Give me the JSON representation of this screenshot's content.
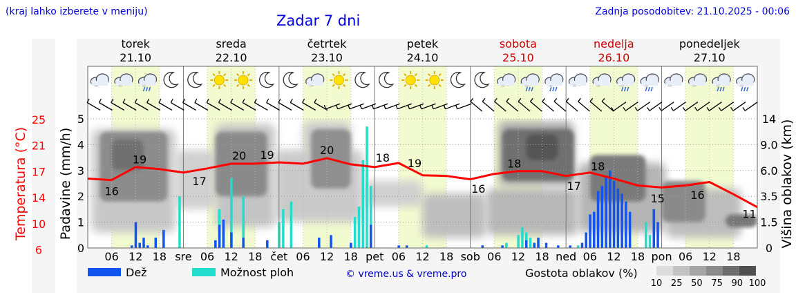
{
  "header": {
    "hint": "(kraj lahko izberete v meniju)",
    "title": "Zadar 7 dni",
    "updated": "Zadnja posodobitev: 21.10.2025 - 00:06"
  },
  "days": [
    {
      "name": "torek",
      "date": "21.10",
      "weekend": false,
      "abbr": ""
    },
    {
      "name": "sreda",
      "date": "22.10",
      "weekend": false,
      "abbr": "sre"
    },
    {
      "name": "četrtek",
      "date": "23.10",
      "weekend": false,
      "abbr": "čet"
    },
    {
      "name": "petek",
      "date": "24.10",
      "weekend": false,
      "abbr": "pet"
    },
    {
      "name": "sobota",
      "date": "25.10",
      "weekend": true,
      "abbr": "sob"
    },
    {
      "name": "nedelja",
      "date": "26.10",
      "weekend": true,
      "abbr": "ned"
    },
    {
      "name": "ponedeljek",
      "date": "27.10",
      "weekend": false,
      "abbr": "pon"
    }
  ],
  "hour_labels": [
    "06",
    "12",
    "18"
  ],
  "axes": {
    "left_temp_label": "Temperatura (°C)",
    "left_temp_ticks": [
      "25",
      "21",
      "17",
      "14",
      "10",
      "6"
    ],
    "left_precip_label": "Padavine (mm/h)",
    "left_precip_ticks": [
      "5",
      "4",
      "3",
      "2",
      "1",
      "0"
    ],
    "right_label": "Višina oblakov (km)",
    "right_ticks": [
      "14",
      "9.0",
      "6.0",
      "3.5",
      "1.5",
      "0"
    ]
  },
  "legend": {
    "rain": "Dež",
    "showers": "Možnost ploh",
    "credit": "© vreme.us & vreme.pro",
    "cloud_density": "Gostota oblakov (%)",
    "density_ticks": [
      "10",
      "25",
      "50",
      "75",
      "90",
      "100"
    ]
  },
  "colors": {
    "temp_line": "#ff0000",
    "rain": "#1155ee",
    "showers": "#22ddcc",
    "title": "#0000dd",
    "weekend": "#cc0000",
    "day_band": "#f2fad0"
  },
  "chart_data": {
    "type": "line",
    "x_unit": "hours since 21.10 00:00",
    "temperature": {
      "x": [
        0,
        6,
        12,
        18,
        24,
        30,
        36,
        42,
        48,
        54,
        60,
        66,
        72,
        78,
        84,
        90,
        96,
        102,
        108,
        114,
        120,
        126,
        132,
        138,
        144,
        150,
        156,
        162,
        168
      ],
      "y": [
        16.2,
        16.0,
        17.9,
        17.6,
        17.1,
        17.7,
        18.4,
        18.4,
        18.6,
        18.4,
        19.2,
        18.3,
        17.9,
        18.5,
        16.7,
        16.6,
        16.1,
        16.9,
        17.3,
        17.3,
        16.6,
        17.1,
        16.2,
        15.2,
        14.9,
        15.2,
        15.7,
        13.9,
        12.0
      ],
      "labels": [
        {
          "x": 6,
          "v": "16"
        },
        {
          "x": 13,
          "v": "19"
        },
        {
          "x": 28,
          "v": "17"
        },
        {
          "x": 38,
          "v": "20"
        },
        {
          "x": 45,
          "v": "19"
        },
        {
          "x": 60,
          "v": "20"
        },
        {
          "x": 74,
          "v": "18"
        },
        {
          "x": 82,
          "v": "19"
        },
        {
          "x": 98,
          "v": "16"
        },
        {
          "x": 107,
          "v": "18"
        },
        {
          "x": 122,
          "v": "17"
        },
        {
          "x": 128,
          "v": "18"
        },
        {
          "x": 143,
          "v": "15"
        },
        {
          "x": 153,
          "v": "16"
        },
        {
          "x": 166,
          "v": "11"
        }
      ],
      "ylim": [
        6,
        25
      ]
    },
    "precipitation": {
      "ylim": [
        0,
        5
      ],
      "rain": [
        [
          11,
          0.1
        ],
        [
          12,
          1.0
        ],
        [
          13,
          0.2
        ],
        [
          14,
          0.4
        ],
        [
          15,
          0.1
        ],
        [
          17,
          0.4
        ],
        [
          19,
          0.7
        ],
        [
          32,
          0.3
        ],
        [
          33,
          0.9
        ],
        [
          34,
          1.1
        ],
        [
          36,
          0.6
        ],
        [
          39,
          0.4
        ],
        [
          45,
          0.3
        ],
        [
          58,
          0.4
        ],
        [
          61,
          0.5
        ],
        [
          66,
          0.2
        ],
        [
          71,
          0.9
        ],
        [
          78,
          0.1
        ],
        [
          80,
          0.1
        ],
        [
          99,
          0.1
        ],
        [
          104,
          0.1
        ],
        [
          110,
          0.3
        ],
        [
          112,
          0.2
        ],
        [
          113,
          0.4
        ],
        [
          115,
          0.2
        ],
        [
          118,
          0.1
        ],
        [
          121,
          0.1
        ],
        [
          124,
          0.2
        ],
        [
          125,
          0.6
        ],
        [
          126,
          1.3
        ],
        [
          127,
          1.4
        ],
        [
          128,
          2.2
        ],
        [
          129,
          2.4
        ],
        [
          130,
          2.8
        ],
        [
          131,
          3.0
        ],
        [
          132,
          2.6
        ],
        [
          133,
          2.3
        ],
        [
          134,
          2.1
        ],
        [
          135,
          1.8
        ],
        [
          136,
          1.4
        ],
        [
          142,
          1.5
        ],
        [
          143,
          1.0
        ]
      ],
      "showers": [
        [
          23,
          2.0
        ],
        [
          33,
          1.5
        ],
        [
          34,
          0.8
        ],
        [
          36,
          2.7
        ],
        [
          39,
          2.0
        ],
        [
          48,
          1.0
        ],
        [
          49,
          1.5
        ],
        [
          51,
          1.8
        ],
        [
          58,
          0.2
        ],
        [
          67,
          1.2
        ],
        [
          68,
          1.6
        ],
        [
          69,
          3.4
        ],
        [
          70,
          4.7
        ],
        [
          71,
          2.4
        ],
        [
          85,
          0.1
        ],
        [
          99,
          0.1
        ],
        [
          105,
          0.2
        ],
        [
          108,
          0.5
        ],
        [
          109,
          0.8
        ],
        [
          110,
          0.6
        ],
        [
          111,
          0.4
        ],
        [
          112,
          0.1
        ],
        [
          123,
          0.1
        ],
        [
          140,
          1.0
        ],
        [
          141,
          0.5
        ]
      ]
    },
    "cloud_height_km_ticks": [
      14,
      9.0,
      6.0,
      3.5,
      1.5,
      0
    ],
    "cloud_density_pct_ticks": [
      10,
      25,
      50,
      75,
      90,
      100
    ]
  }
}
